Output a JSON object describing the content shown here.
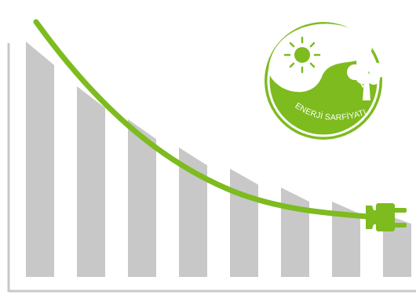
{
  "badge": {
    "label": "ENERJİ SARFİYATI",
    "icons": [
      "sun-icon",
      "tree-icon"
    ]
  },
  "colors": {
    "bars": "#c8c8c8",
    "axis": "#c8c8c8",
    "cable": "#7dbb1f",
    "badge_green": "#7dbb1f",
    "badge_light": "#ffffff"
  },
  "illustration": {
    "bar_count": 8,
    "relative_heights": [
      1.0,
      0.81,
      0.67,
      0.55,
      0.46,
      0.38,
      0.32,
      0.27
    ],
    "elements": [
      "declining-bars",
      "power-cable",
      "power-plug",
      "energy-badge"
    ]
  }
}
